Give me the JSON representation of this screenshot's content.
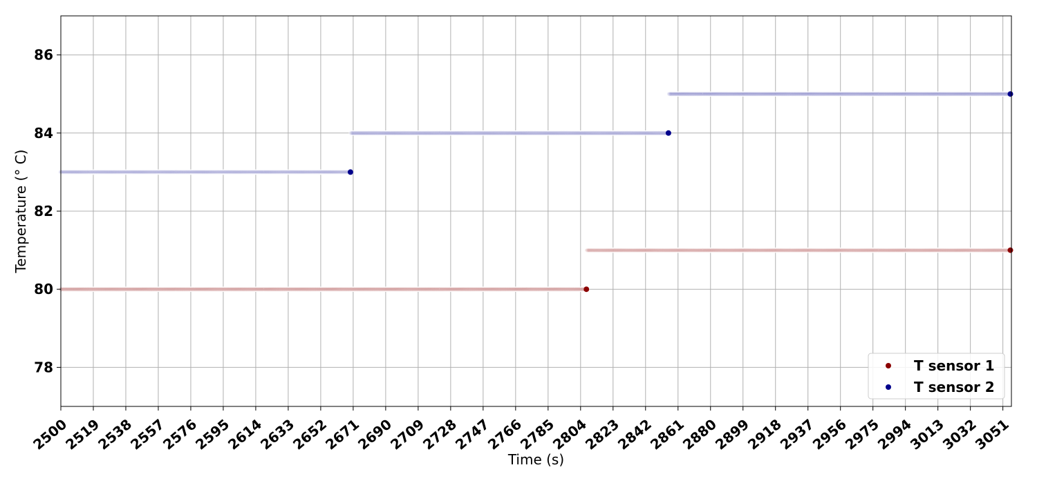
{
  "chart_data": {
    "type": "scatter",
    "title": "",
    "xlabel": "Time (s)",
    "ylabel": "Temperature (° C)",
    "xlim": [
      2500,
      3056
    ],
    "ylim": [
      77,
      87
    ],
    "x_ticks": [
      2500,
      2519,
      2538,
      2557,
      2576,
      2595,
      2614,
      2633,
      2652,
      2671,
      2690,
      2709,
      2728,
      2747,
      2766,
      2785,
      2804,
      2823,
      2842,
      2861,
      2880,
      2899,
      2918,
      2937,
      2956,
      2975,
      2994,
      3013,
      3032,
      3051
    ],
    "y_ticks": [
      78,
      80,
      82,
      84,
      86
    ],
    "grid": true,
    "legend_position": "bottom-right",
    "series": [
      {
        "name": "T sensor 1",
        "color": "#8b0000",
        "segments": [
          {
            "x_start": 2500,
            "x_end": 2808,
            "y": 80
          },
          {
            "x_start": 2808,
            "x_end": 3056,
            "y": 81
          }
        ]
      },
      {
        "name": "T sensor 2",
        "color": "#00008b",
        "segments": [
          {
            "x_start": 2500,
            "x_end": 2670,
            "y": 83
          },
          {
            "x_start": 2670,
            "x_end": 2856,
            "y": 84
          },
          {
            "x_start": 2856,
            "x_end": 3056,
            "y": 85
          }
        ]
      }
    ]
  }
}
